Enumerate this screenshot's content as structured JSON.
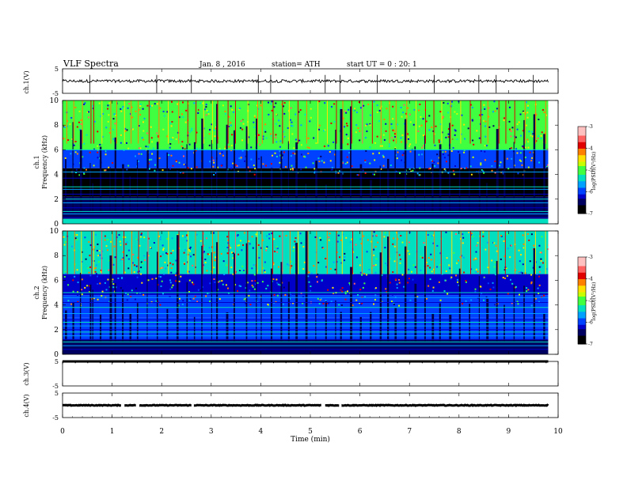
{
  "header": {
    "title": "VLF Spectra",
    "date": "Jan. 8 , 2016",
    "station": "station= ATH",
    "start": "start UT =  0 : 20: 1"
  },
  "chart_data": [
    {
      "type": "line",
      "panel": "ch1-waveform",
      "ylabel": "ch.1(V)",
      "ylim": [
        -5,
        5
      ],
      "yticks": [
        "5",
        "-5"
      ],
      "x_range": [
        0,
        9.8
      ],
      "level": 0.0,
      "noise_amplitude": 0.25,
      "spike_minutes": [
        0.55,
        1.9,
        2.6,
        3.95,
        4.2,
        5.3,
        5.6,
        6.35,
        7.5,
        8.4,
        8.75,
        9.5
      ]
    },
    {
      "type": "heatmap",
      "panel": "ch1-spectrogram",
      "ylabel": "Frequency (kHz)",
      "channel_label": "ch.1",
      "ylim": [
        0,
        10
      ],
      "yticks": [
        "0",
        "2",
        "4",
        "6",
        "8",
        "10"
      ],
      "x_range": [
        0,
        9.8
      ],
      "colorbar": {
        "label": "log(PSD)(V²/Hz)",
        "ticks": [
          "-3",
          "-4",
          "-5",
          "-6",
          "-7"
        ],
        "range": [
          -7,
          -3
        ]
      },
      "bands_kHz": [
        {
          "lo": 6.0,
          "hi": 10.0,
          "log_psd": -5.0
        },
        {
          "lo": 4.5,
          "hi": 6.0,
          "log_psd": -6.0
        },
        {
          "lo": 2.2,
          "hi": 4.5,
          "log_psd": -6.8
        },
        {
          "lo": 0.4,
          "hi": 2.2,
          "log_psd": -6.4
        },
        {
          "lo": 0.0,
          "hi": 0.4,
          "log_psd": -5.2
        }
      ],
      "lines_kHz": [
        6.0,
        4.2,
        3.7,
        3.0,
        2.8,
        2.4,
        2.0,
        1.7,
        1.3,
        1.0,
        0.8,
        0.5,
        0.3
      ],
      "sferic_minutes": [
        0.05,
        0.2,
        0.35,
        0.55,
        0.6,
        0.75,
        0.95,
        1.05,
        1.2,
        1.35,
        1.5,
        1.7,
        1.9,
        2.1,
        2.3,
        2.5,
        2.65,
        2.8,
        3.0,
        3.1,
        3.3,
        3.45,
        3.7,
        3.9,
        4.0,
        4.2,
        4.4,
        4.55,
        4.7,
        4.9,
        5.1,
        5.3,
        5.5,
        5.6,
        5.8,
        6.0,
        6.2,
        6.4,
        6.55,
        6.7,
        6.9,
        7.1,
        7.3,
        7.45,
        7.6,
        7.8,
        8.0,
        8.2,
        8.4,
        8.55,
        8.75,
        8.9,
        9.1,
        9.3,
        9.5,
        9.7
      ]
    },
    {
      "type": "heatmap",
      "panel": "ch2-spectrogram",
      "ylabel": "Frequency (kHz)",
      "channel_label": "ch.2",
      "ylim": [
        0,
        10
      ],
      "yticks": [
        "0",
        "2",
        "4",
        "6",
        "8",
        "10"
      ],
      "x_range": [
        0,
        9.8
      ],
      "colorbar": {
        "label": "log(PSD)(V²/Hz)",
        "ticks": [
          "-3",
          "-4",
          "-5",
          "-6",
          "-7"
        ],
        "range": [
          -7,
          -3
        ]
      },
      "bands_kHz": [
        {
          "lo": 6.5,
          "hi": 10.0,
          "log_psd": -5.3
        },
        {
          "lo": 4.8,
          "hi": 6.5,
          "log_psd": -6.2
        },
        {
          "lo": 3.0,
          "hi": 4.8,
          "log_psd": -6.0
        },
        {
          "lo": 1.2,
          "hi": 3.0,
          "log_psd": -5.9
        },
        {
          "lo": 0.0,
          "hi": 1.2,
          "log_psd": -6.6
        }
      ],
      "lines_kHz": [
        5.0,
        4.6,
        4.2,
        3.8,
        3.3,
        2.8,
        2.6,
        2.3,
        2.0,
        1.8,
        1.5,
        1.2,
        1.0,
        0.7,
        0.4
      ],
      "sferic_minutes": [
        0.05,
        0.2,
        0.35,
        0.55,
        0.6,
        0.75,
        0.95,
        1.05,
        1.2,
        1.35,
        1.5,
        1.7,
        1.9,
        2.1,
        2.3,
        2.5,
        2.65,
        2.8,
        3.0,
        3.1,
        3.3,
        3.45,
        3.7,
        3.9,
        4.0,
        4.2,
        4.4,
        4.55,
        4.7,
        4.9,
        5.1,
        5.3,
        5.5,
        5.6,
        5.8,
        6.0,
        6.2,
        6.4,
        6.55,
        6.7,
        6.9,
        7.1,
        7.3,
        7.45,
        7.6,
        7.8,
        8.0,
        8.2,
        8.4,
        8.55,
        8.75,
        8.9,
        9.1,
        9.3,
        9.5,
        9.7
      ]
    },
    {
      "type": "line",
      "panel": "ch3-waveform",
      "ylabel": "ch.3(V)",
      "ylim": [
        -5,
        5
      ],
      "yticks": [
        "5",
        "-5"
      ],
      "x_range": [
        0,
        9.8
      ],
      "level": 5.0,
      "noise_amplitude": 0.0,
      "spike_minutes": []
    },
    {
      "type": "line",
      "panel": "ch4-waveform",
      "ylabel": "ch.4(V)",
      "ylim": [
        -5,
        5
      ],
      "yticks": [
        "5",
        "-5"
      ],
      "x_range": [
        0,
        9.8
      ],
      "level": 0.0,
      "noise_amplitude": 0.15,
      "gaps_minutes": [
        [
          1.18,
          1.25
        ],
        [
          1.48,
          1.55
        ],
        [
          2.6,
          2.65
        ],
        [
          5.22,
          5.3
        ],
        [
          5.58,
          5.63
        ]
      ]
    }
  ],
  "x_axis": {
    "label": "Time (min)",
    "range": [
      0,
      10
    ],
    "ticks": [
      "0",
      "1",
      "2",
      "3",
      "4",
      "5",
      "6",
      "7",
      "8",
      "9",
      "10"
    ]
  },
  "palette": [
    "#000000",
    "#000060",
    "#0000c8",
    "#0040ff",
    "#00a0ff",
    "#00e0c0",
    "#40ff40",
    "#c8ff00",
    "#ffe000",
    "#ff8000",
    "#e00000",
    "#ff6060",
    "#ffc0c0"
  ]
}
